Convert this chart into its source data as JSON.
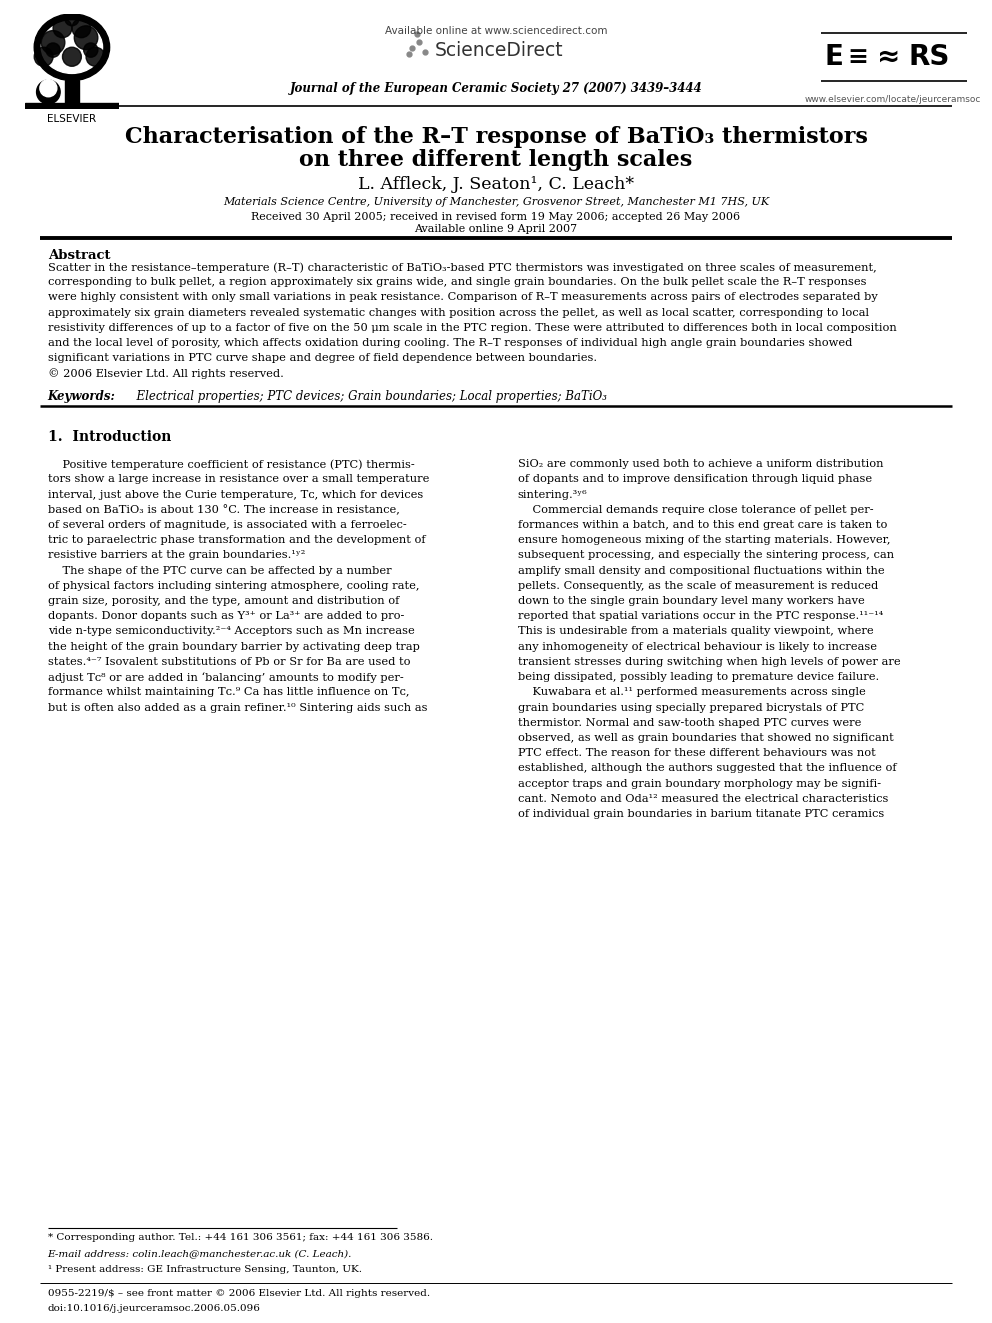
{
  "bg_color": "#ffffff",
  "page_width": 9.92,
  "page_height": 13.23,
  "header_available_online": "Available online at www.sciencedirect.com",
  "journal_name": "Journal of the European Ceramic Society 27 (2007) 3439–3444",
  "elsevier_text": "ELSEVIER",
  "website": "www.elsevier.com/locate/jeurceramsoc",
  "title_line1": "Characterisation of the R–T response of BaTiO₃ thermistors",
  "title_line2": "on three different length scales",
  "authors_line": "L. Affleck, J. Seaton¹, C. Leach*",
  "affiliation": "Materials Science Centre, University of Manchester, Grosvenor Street, Manchester M1 7HS, UK",
  "received": "Received 30 April 2005; received in revised form 19 May 2006; accepted 26 May 2006",
  "available_online": "Available online 9 April 2007",
  "abstract_title": "Abstract",
  "keywords_label": "Keywords:",
  "keywords_text": "  Electrical properties; PTC devices; Grain boundaries; Local properties; BaTiO₃",
  "section1_title": "1.  Introduction",
  "footnote_star": "* Corresponding author. Tel.: +44 161 306 3561; fax: +44 161 306 3586.",
  "footnote_email": "E-mail address: colin.leach@manchester.ac.uk (C. Leach).",
  "footnote_1": "¹ Present address: GE Infrastructure Sensing, Taunton, UK.",
  "footer_issn": "0955-2219/$ – see front matter © 2006 Elsevier Ltd. All rights reserved.",
  "footer_doi": "doi:10.1016/j.jeurceramsoc.2006.05.096"
}
